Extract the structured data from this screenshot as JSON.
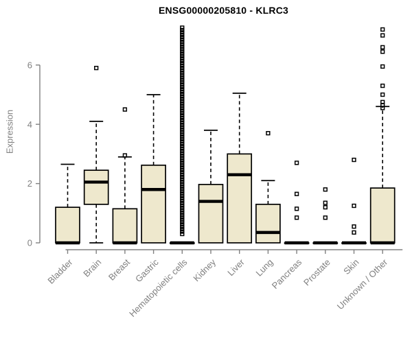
{
  "chart_data": {
    "type": "boxplot",
    "title": "ENSG00000205810 - KLRC3",
    "ylabel": "Expression",
    "xlabel": "",
    "ylim": [
      0,
      7.4
    ],
    "yticks": [
      0,
      2,
      4,
      6
    ],
    "grid": false,
    "legend": "none",
    "categories": [
      "Bladder",
      "Brain",
      "Breast",
      "Gastric",
      "Hematopoietic cells",
      "Kidney",
      "Liver",
      "Lung",
      "Pancreas",
      "Prostate",
      "Skin",
      "Unknown / Other"
    ],
    "boxes": [
      {
        "category": "Bladder",
        "whisker_low": 0,
        "q1": 0,
        "median": 0,
        "q3": 1.2,
        "whisker_high": 2.65,
        "outliers": []
      },
      {
        "category": "Brain",
        "whisker_low": 0,
        "q1": 1.3,
        "median": 2.05,
        "q3": 2.45,
        "whisker_high": 4.1,
        "outliers": [
          5.9
        ]
      },
      {
        "category": "Breast",
        "whisker_low": 0,
        "q1": 0,
        "median": 0,
        "q3": 1.15,
        "whisker_high": 2.9,
        "outliers": [
          2.95,
          4.5
        ]
      },
      {
        "category": "Gastric",
        "whisker_low": 0,
        "q1": 0,
        "median": 1.8,
        "q3": 2.62,
        "whisker_high": 5.0,
        "outliers": []
      },
      {
        "category": "Hematopoietic cells",
        "whisker_low": 0,
        "q1": 0,
        "median": 0,
        "q3": 0,
        "whisker_high": 0,
        "outliers": [
          0.3,
          0.38,
          0.46,
          0.54,
          0.62,
          0.7,
          0.78,
          0.86,
          0.94,
          1.02,
          1.1,
          1.18,
          1.26,
          1.34,
          1.42,
          1.5,
          1.58,
          1.66,
          1.74,
          1.82,
          1.9,
          1.98,
          2.06,
          2.14,
          2.22,
          2.3,
          2.38,
          2.46,
          2.54,
          2.62,
          2.7,
          2.78,
          2.86,
          2.94,
          3.02,
          3.1,
          3.18,
          3.26,
          3.34,
          3.42,
          3.5,
          3.58,
          3.66,
          3.74,
          3.82,
          3.9,
          3.98,
          4.06,
          4.14,
          4.22,
          4.3,
          4.38,
          4.46,
          4.54,
          4.62,
          4.7,
          4.78,
          4.86,
          4.94,
          5.02,
          5.1,
          5.18,
          5.26,
          5.34,
          5.42,
          5.5,
          5.58,
          5.66,
          5.74,
          5.82,
          5.9,
          5.98,
          6.06,
          6.14,
          6.22,
          6.3,
          6.38,
          6.46,
          6.54,
          6.62,
          6.7,
          6.78,
          6.86,
          6.94,
          7.02,
          7.1,
          7.18,
          7.26
        ]
      },
      {
        "category": "Kidney",
        "whisker_low": 0,
        "q1": 0,
        "median": 1.4,
        "q3": 1.97,
        "whisker_high": 3.8,
        "outliers": []
      },
      {
        "category": "Liver",
        "whisker_low": 0,
        "q1": 0,
        "median": 2.3,
        "q3": 3.0,
        "whisker_high": 5.05,
        "outliers": []
      },
      {
        "category": "Lung",
        "whisker_low": 0,
        "q1": 0,
        "median": 0.35,
        "q3": 1.3,
        "whisker_high": 2.1,
        "outliers": [
          3.7
        ]
      },
      {
        "category": "Pancreas",
        "whisker_low": 0,
        "q1": 0,
        "median": 0,
        "q3": 0,
        "whisker_high": 0,
        "outliers": [
          0.85,
          1.15,
          1.65,
          2.7
        ]
      },
      {
        "category": "Prostate",
        "whisker_low": 0,
        "q1": 0,
        "median": 0,
        "q3": 0,
        "whisker_high": 0,
        "outliers": [
          0.85,
          1.2,
          1.35,
          1.8
        ]
      },
      {
        "category": "Skin",
        "whisker_low": 0,
        "q1": 0,
        "median": 0,
        "q3": 0,
        "whisker_high": 0,
        "outliers": [
          0.35,
          0.55,
          1.25,
          2.8
        ]
      },
      {
        "category": "Unknown / Other",
        "whisker_low": 0,
        "q1": 0,
        "median": 0,
        "q3": 1.85,
        "whisker_high": 4.6,
        "outliers": [
          4.55,
          4.65,
          4.75,
          5.0,
          5.3,
          5.95,
          6.45,
          6.6,
          7.0,
          7.2
        ]
      }
    ],
    "colors": {
      "box_fill": "#EEE8CD",
      "box_border": "#000000",
      "median": "#000000",
      "whisker": "#000000",
      "outlier": "#000000",
      "axis": "#808080",
      "tick_label": "#808080",
      "title": "#000000",
      "background": "#FFFFFF"
    }
  }
}
